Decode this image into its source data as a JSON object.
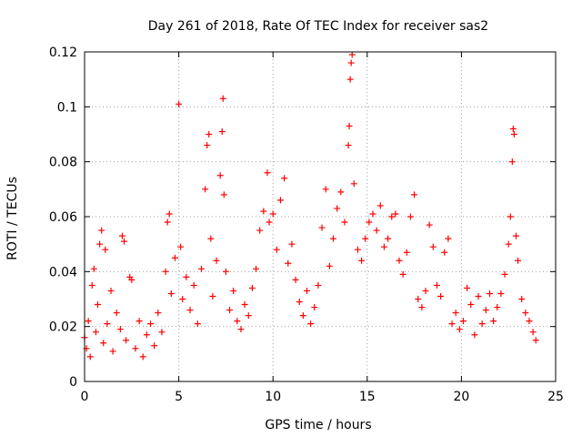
{
  "chart_data": {
    "type": "scatter",
    "title": "Day 261 of 2018, Rate Of TEC Index for receiver sas2",
    "xlabel": "GPS time / hours",
    "ylabel": "ROTI / TECUs",
    "xlim": [
      0,
      25
    ],
    "ylim": [
      0,
      0.12
    ],
    "x_ticks": [
      0,
      5,
      10,
      15,
      20,
      25
    ],
    "x_tick_labels": [
      "0",
      "5",
      "10",
      "15",
      "20",
      "25"
    ],
    "y_ticks": [
      0,
      0.02,
      0.04,
      0.06,
      0.08,
      0.1,
      0.12
    ],
    "y_tick_labels": [
      "0",
      "0.02",
      "0.04",
      "0.06",
      "0.08",
      "0.1",
      "0.12"
    ],
    "grid": true,
    "marker": "plus",
    "marker_color": "#ff0000",
    "series": [
      {
        "name": "ROTI",
        "points": [
          [
            0.0,
            0.016
          ],
          [
            0.1,
            0.012
          ],
          [
            0.2,
            0.022
          ],
          [
            0.3,
            0.009
          ],
          [
            0.4,
            0.035
          ],
          [
            0.5,
            0.041
          ],
          [
            0.6,
            0.018
          ],
          [
            0.7,
            0.028
          ],
          [
            0.8,
            0.05
          ],
          [
            0.9,
            0.055
          ],
          [
            1.0,
            0.014
          ],
          [
            1.1,
            0.048
          ],
          [
            1.2,
            0.021
          ],
          [
            1.4,
            0.033
          ],
          [
            1.5,
            0.011
          ],
          [
            1.7,
            0.025
          ],
          [
            1.9,
            0.019
          ],
          [
            2.0,
            0.053
          ],
          [
            2.1,
            0.051
          ],
          [
            2.2,
            0.015
          ],
          [
            2.4,
            0.038
          ],
          [
            2.5,
            0.037
          ],
          [
            2.7,
            0.012
          ],
          [
            2.9,
            0.022
          ],
          [
            3.1,
            0.009
          ],
          [
            3.3,
            0.017
          ],
          [
            3.5,
            0.021
          ],
          [
            3.7,
            0.013
          ],
          [
            3.9,
            0.025
          ],
          [
            4.1,
            0.018
          ],
          [
            4.3,
            0.04
          ],
          [
            4.4,
            0.058
          ],
          [
            4.5,
            0.061
          ],
          [
            4.6,
            0.032
          ],
          [
            4.8,
            0.045
          ],
          [
            5.0,
            0.101
          ],
          [
            5.1,
            0.049
          ],
          [
            5.2,
            0.03
          ],
          [
            5.4,
            0.038
          ],
          [
            5.6,
            0.026
          ],
          [
            5.8,
            0.035
          ],
          [
            6.0,
            0.021
          ],
          [
            6.2,
            0.041
          ],
          [
            6.4,
            0.07
          ],
          [
            6.5,
            0.086
          ],
          [
            6.6,
            0.09
          ],
          [
            6.7,
            0.052
          ],
          [
            6.8,
            0.031
          ],
          [
            7.0,
            0.044
          ],
          [
            7.2,
            0.075
          ],
          [
            7.3,
            0.091
          ],
          [
            7.35,
            0.103
          ],
          [
            7.4,
            0.068
          ],
          [
            7.5,
            0.04
          ],
          [
            7.7,
            0.026
          ],
          [
            7.9,
            0.033
          ],
          [
            8.1,
            0.022
          ],
          [
            8.3,
            0.019
          ],
          [
            8.5,
            0.028
          ],
          [
            8.7,
            0.024
          ],
          [
            8.9,
            0.034
          ],
          [
            9.1,
            0.041
          ],
          [
            9.3,
            0.055
          ],
          [
            9.5,
            0.062
          ],
          [
            9.7,
            0.076
          ],
          [
            9.8,
            0.058
          ],
          [
            10.0,
            0.061
          ],
          [
            10.2,
            0.048
          ],
          [
            10.4,
            0.066
          ],
          [
            10.6,
            0.074
          ],
          [
            10.8,
            0.043
          ],
          [
            11.0,
            0.05
          ],
          [
            11.2,
            0.037
          ],
          [
            11.4,
            0.029
          ],
          [
            11.6,
            0.024
          ],
          [
            11.8,
            0.033
          ],
          [
            12.0,
            0.021
          ],
          [
            12.2,
            0.027
          ],
          [
            12.4,
            0.035
          ],
          [
            12.6,
            0.056
          ],
          [
            12.8,
            0.07
          ],
          [
            13.0,
            0.042
          ],
          [
            13.2,
            0.052
          ],
          [
            13.4,
            0.063
          ],
          [
            13.6,
            0.069
          ],
          [
            13.8,
            0.058
          ],
          [
            14.0,
            0.086
          ],
          [
            14.05,
            0.093
          ],
          [
            14.1,
            0.11
          ],
          [
            14.15,
            0.116
          ],
          [
            14.2,
            0.119
          ],
          [
            14.3,
            0.072
          ],
          [
            14.5,
            0.048
          ],
          [
            14.7,
            0.044
          ],
          [
            14.9,
            0.052
          ],
          [
            15.1,
            0.058
          ],
          [
            15.3,
            0.061
          ],
          [
            15.5,
            0.055
          ],
          [
            15.7,
            0.064
          ],
          [
            15.9,
            0.049
          ],
          [
            16.1,
            0.052
          ],
          [
            16.3,
            0.06
          ],
          [
            16.5,
            0.061
          ],
          [
            16.7,
            0.044
          ],
          [
            16.9,
            0.039
          ],
          [
            17.1,
            0.047
          ],
          [
            17.3,
            0.06
          ],
          [
            17.5,
            0.068
          ],
          [
            17.7,
            0.03
          ],
          [
            17.9,
            0.027
          ],
          [
            18.1,
            0.033
          ],
          [
            18.3,
            0.057
          ],
          [
            18.5,
            0.049
          ],
          [
            18.7,
            0.035
          ],
          [
            18.9,
            0.031
          ],
          [
            19.1,
            0.047
          ],
          [
            19.3,
            0.052
          ],
          [
            19.5,
            0.021
          ],
          [
            19.7,
            0.025
          ],
          [
            19.9,
            0.019
          ],
          [
            20.1,
            0.022
          ],
          [
            20.3,
            0.034
          ],
          [
            20.5,
            0.028
          ],
          [
            20.7,
            0.017
          ],
          [
            20.9,
            0.031
          ],
          [
            21.1,
            0.021
          ],
          [
            21.3,
            0.026
          ],
          [
            21.5,
            0.032
          ],
          [
            21.7,
            0.022
          ],
          [
            21.9,
            0.027
          ],
          [
            22.1,
            0.032
          ],
          [
            22.3,
            0.039
          ],
          [
            22.5,
            0.05
          ],
          [
            22.6,
            0.06
          ],
          [
            22.7,
            0.08
          ],
          [
            22.75,
            0.092
          ],
          [
            22.8,
            0.09
          ],
          [
            22.9,
            0.053
          ],
          [
            23.0,
            0.044
          ],
          [
            23.2,
            0.03
          ],
          [
            23.4,
            0.025
          ],
          [
            23.6,
            0.022
          ],
          [
            23.8,
            0.018
          ],
          [
            23.95,
            0.015
          ]
        ]
      }
    ]
  }
}
